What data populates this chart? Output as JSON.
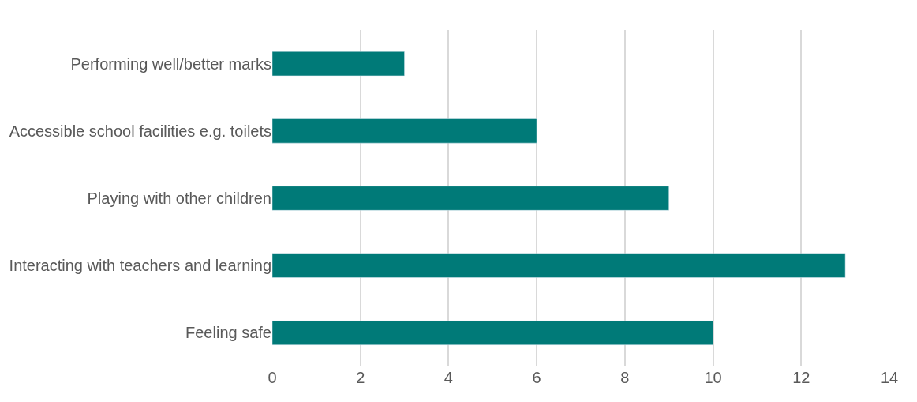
{
  "chart_data": {
    "type": "bar",
    "orientation": "horizontal",
    "categories": [
      "Performing well/better marks",
      "Accessible school facilities e.g. toilets",
      "Playing with other children",
      "Interacting with teachers and learning",
      "Feeling safe"
    ],
    "values": [
      3,
      6,
      9,
      13,
      10
    ],
    "color": "#007a78",
    "xlim": [
      0,
      14
    ],
    "xticks": [
      0,
      2,
      4,
      6,
      8,
      10,
      12,
      14
    ],
    "grid": "x"
  }
}
